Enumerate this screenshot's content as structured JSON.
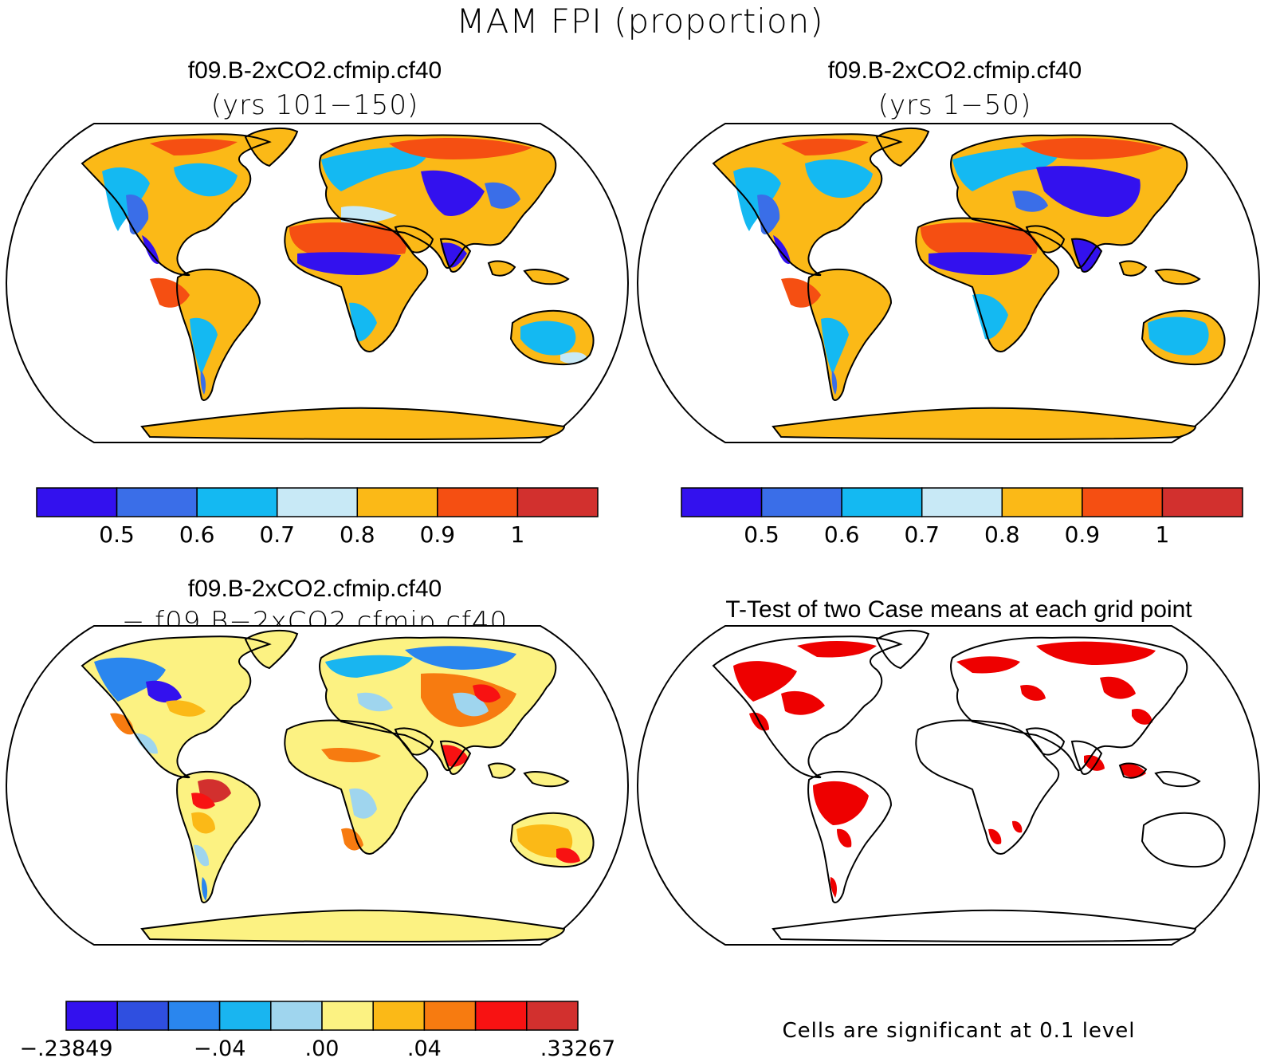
{
  "title": "MAM FPI (proportion)",
  "panels": {
    "top_left": {
      "case": "f09.B-2xCO2.cfmip.cf40",
      "subtitle": "(yrs 101−150)"
    },
    "top_right": {
      "case": "f09.B-2xCO2.cfmip.cf40",
      "subtitle": "(yrs 1−50)"
    },
    "bottom_left": {
      "case": "f09.B-2xCO2.cfmip.cf40",
      "subtitle": "− f09.B−2xCO2.cfmip.cf40"
    },
    "bottom_right": {
      "title": "T-Test of two Case means at each grid point",
      "note": "Cells are significant at 0.1 level"
    }
  },
  "colorbar_mean": {
    "colors": [
      "#3311ee",
      "#3a6ee8",
      "#14b9f2",
      "#c8e9f6",
      "#fbb917",
      "#f54f12",
      "#d2302e"
    ],
    "tick_labels": [
      "0.5",
      "0.6",
      "0.7",
      "0.8",
      "0.9",
      "1"
    ]
  },
  "colorbar_diff": {
    "colors": [
      "#3311ee",
      "#2f4fe0",
      "#2a86ee",
      "#19b5f0",
      "#9fd5ee",
      "#fcf282",
      "#fbb917",
      "#f77b10",
      "#f81212",
      "#d2302e"
    ],
    "tick_labels": [
      "-.23849",
      "-.04",
      ".00",
      ".04",
      ".33267"
    ]
  },
  "colors": {
    "significant": "#ee0000",
    "coast": "#000000"
  }
}
